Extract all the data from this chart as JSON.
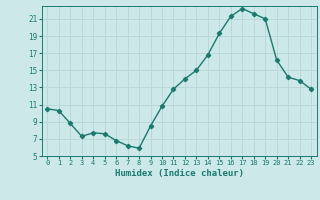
{
  "x": [
    0,
    1,
    2,
    3,
    4,
    5,
    6,
    7,
    8,
    9,
    10,
    11,
    12,
    13,
    14,
    15,
    16,
    17,
    18,
    19,
    20,
    21,
    22,
    23
  ],
  "y": [
    10.5,
    10.3,
    8.8,
    7.3,
    7.7,
    7.6,
    6.8,
    6.2,
    5.9,
    8.5,
    10.8,
    12.8,
    14.0,
    15.0,
    16.8,
    19.3,
    21.3,
    22.2,
    21.6,
    21.0,
    16.2,
    14.2,
    13.8,
    12.8
  ],
  "xlim": [
    -0.5,
    23.5
  ],
  "ylim": [
    5,
    22.5
  ],
  "yticks": [
    5,
    7,
    9,
    11,
    13,
    15,
    17,
    19,
    21
  ],
  "xticks": [
    0,
    1,
    2,
    3,
    4,
    5,
    6,
    7,
    8,
    9,
    10,
    11,
    12,
    13,
    14,
    15,
    16,
    17,
    18,
    19,
    20,
    21,
    22,
    23
  ],
  "xlabel": "Humidex (Indice chaleur)",
  "line_color": "#1a7a6e",
  "marker": "D",
  "marker_size": 2.2,
  "bg_color": "#cce8e8",
  "grid_color_major": "#b8d4d4",
  "grid_color_minor": "#d4e8e8",
  "tick_color": "#1a7a6e",
  "label_color": "#1a7a6e",
  "line_width": 1.0,
  "spine_color": "#1a7a6e"
}
